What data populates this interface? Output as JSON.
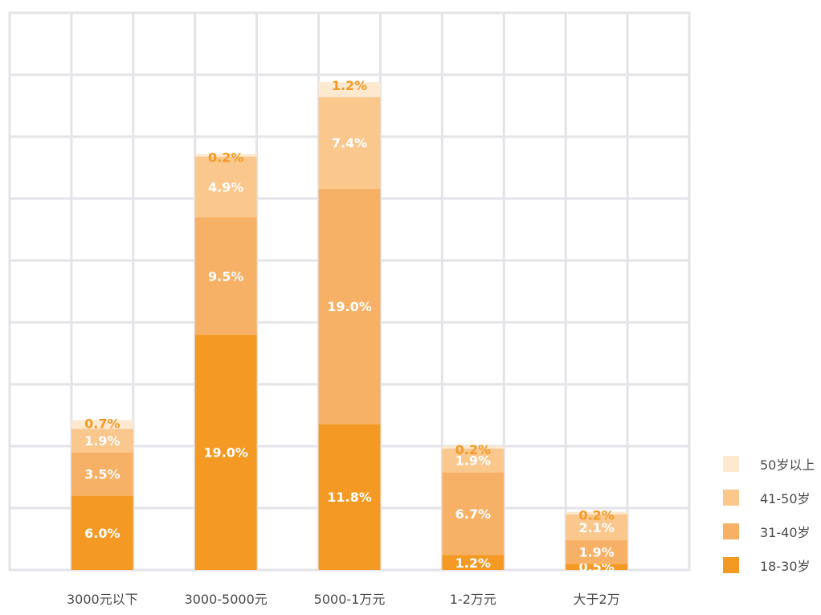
{
  "chart_data": {
    "type": "bar",
    "stacked": true,
    "categories": [
      "3000元以下",
      "3000-5000元",
      "5000-1万元",
      "1-2万元",
      "大于2万"
    ],
    "series": [
      {
        "name": "18-30岁",
        "color": "#f49a24",
        "values": [
          6.0,
          19.0,
          11.8,
          1.2,
          0.5
        ],
        "labels": [
          "6.0%",
          "19.0%",
          "11.8%",
          "1.2%",
          "0.5%"
        ]
      },
      {
        "name": "31-40岁",
        "color": "#f7b166",
        "values": [
          3.5,
          9.5,
          19.0,
          6.7,
          1.9
        ],
        "labels": [
          "3.5%",
          "9.5%",
          "19.0%",
          "6.7%",
          "1.9%"
        ]
      },
      {
        "name": "41-50岁",
        "color": "#fac78d",
        "values": [
          1.9,
          4.9,
          7.4,
          1.9,
          2.1
        ],
        "labels": [
          "1.9%",
          "4.9%",
          "7.4%",
          "1.9%",
          "2.1%"
        ]
      },
      {
        "name": "50岁以上",
        "color": "#fde8d0",
        "values": [
          0.7,
          0.2,
          1.2,
          0.2,
          0.2
        ],
        "labels": [
          "0.7%",
          "0.2%",
          "1.2%",
          "0.2%",
          "0.2%"
        ]
      }
    ],
    "ylim": [
      0,
      45
    ],
    "grid": true,
    "legend_position": "bottom-right",
    "title": "",
    "xlabel": "",
    "ylabel": ""
  }
}
